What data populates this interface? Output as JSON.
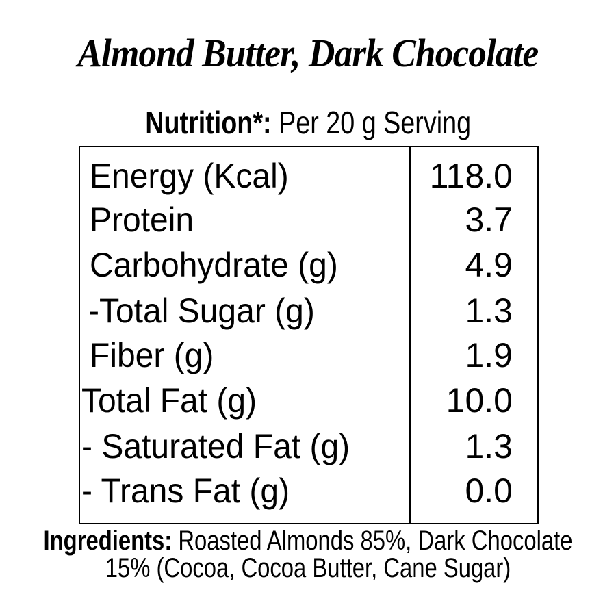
{
  "title": "Almond Butter, Dark Chocolate",
  "subtitle": {
    "bold": "Nutrition*:",
    "rest": " Per 20 g Serving"
  },
  "rows": [
    {
      "label": "Energy (Kcal)",
      "value": "118.0"
    },
    {
      "label": "Protein",
      "value": "3.7"
    },
    {
      "label": "Carbohydrate (g)",
      "value": "4.9"
    },
    {
      "label": "-Total Sugar (g)",
      "value": "1.3"
    },
    {
      "label": "Fiber (g)",
      "value": "1.9"
    },
    {
      "label": "Total Fat (g)",
      "value": "10.0"
    },
    {
      "label": "- Saturated Fat (g)",
      "value": "1.3"
    },
    {
      "label": "- Trans Fat (g)",
      "value": "0.0"
    }
  ],
  "ingredients": {
    "bold": "Ingredients:",
    "text": " Roasted Almonds 85%, Dark Chocolate 15% (Cocoa, Cocoa Butter, Cane Sugar)"
  }
}
